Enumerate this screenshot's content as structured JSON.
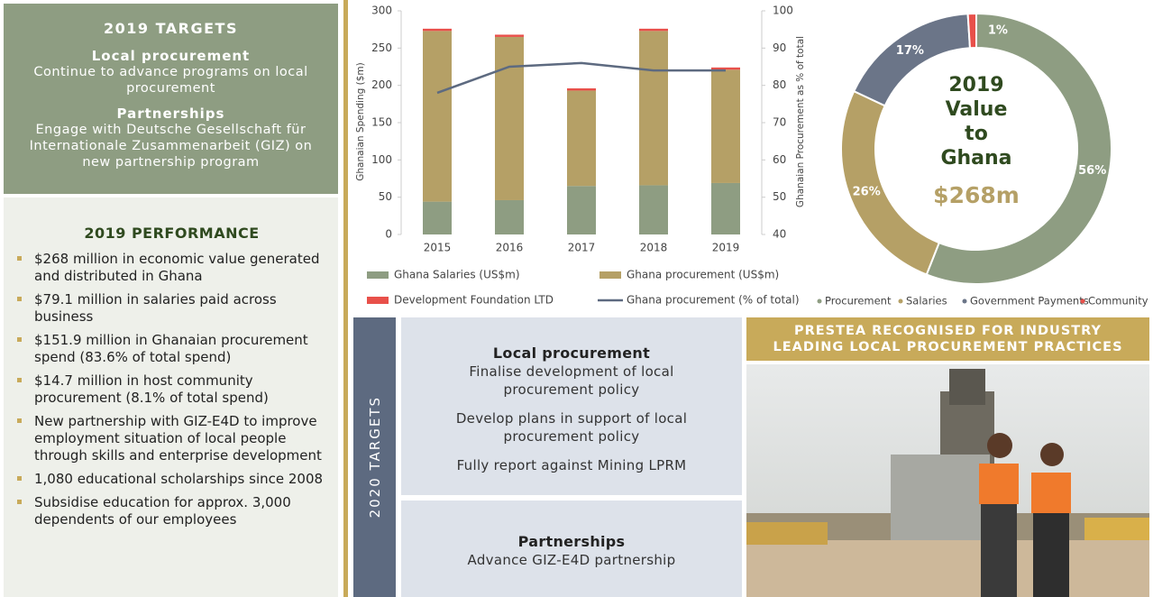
{
  "targets_2019": {
    "title": "2019 TARGETS",
    "items": [
      {
        "heading": "Local procurement",
        "text": "Continue to advance programs on local procurement"
      },
      {
        "heading": "Partnerships",
        "text": "Engage with Deutsche Gesellschaft für Internationale Zusammenarbeit (GIZ) on new partnership program"
      }
    ]
  },
  "performance_2019": {
    "title": "2019 PERFORMANCE",
    "bullets": [
      "$268 million in economic value generated and distributed in Ghana",
      "$79.1 million in salaries paid across business",
      "$151.9 million in Ghanaian procurement spend (83.6% of total spend)",
      "$14.7 million in host community procurement (8.1% of total spend)",
      "New partnership with GIZ-E4D to improve employment situation of local people through skills and enterprise development",
      "1,080 educational scholarships since 2008",
      "Subsidise education for approx. 3,000 dependents of our employees"
    ]
  },
  "chart_data": [
    {
      "type": "bar",
      "stacked": true,
      "categories": [
        "2015",
        "2016",
        "2017",
        "2018",
        "2019"
      ],
      "series": [
        {
          "name": "Ghana Salaries (US$m)",
          "color": "#8e9d82",
          "values": [
            44,
            46,
            65,
            66,
            69
          ]
        },
        {
          "name": "Ghana procurement (US$m)",
          "color": "#b5a066",
          "values": [
            229,
            219,
            128,
            207,
            152
          ]
        },
        {
          "name": "Development Foundation LTD",
          "color": "#e8504a",
          "values": [
            3,
            3,
            3,
            3,
            3
          ]
        },
        {
          "name": "Ghana procurement (% of total)",
          "type": "line",
          "axis": "y2",
          "color": "#5d6a80",
          "values": [
            78,
            85,
            86,
            84,
            84
          ]
        }
      ],
      "ylabel": "Ghanaian Spending ($m)",
      "y2label": "Ghanaian Procurement as % of total",
      "ylim": [
        0,
        300
      ],
      "yticks": [
        0,
        50,
        100,
        150,
        200,
        250,
        300
      ],
      "y2lim": [
        40,
        100
      ],
      "y2ticks": [
        40,
        50,
        60,
        70,
        80,
        90,
        100
      ]
    },
    {
      "type": "pie",
      "donut": true,
      "title": [
        "2019",
        "Value",
        "to",
        "Ghana"
      ],
      "center_value": "$268m",
      "categories": [
        "Procurement",
        "Salaries",
        "Government Payments",
        "Community"
      ],
      "values": [
        56,
        26,
        17,
        1
      ],
      "value_labels": [
        "56%",
        "26%",
        "17%",
        "1%"
      ],
      "colors": [
        "#8e9d82",
        "#b5a066",
        "#6b7588",
        "#e8504a"
      ]
    }
  ],
  "targets_2020": {
    "title": "2020 TARGETS",
    "local_procurement": {
      "heading": "Local procurement",
      "items": [
        "Finalise development of local procurement policy",
        "Develop plans in support of local procurement policy",
        "Fully report against Mining LPRM"
      ]
    },
    "partnerships": {
      "heading": "Partnerships",
      "items": [
        "Advance GIZ-E4D partnership"
      ]
    }
  },
  "photo_panel": {
    "title": "PRESTEA RECOGNISED FOR INDUSTRY LEADING LOCAL PROCUREMENT PRACTICES"
  }
}
